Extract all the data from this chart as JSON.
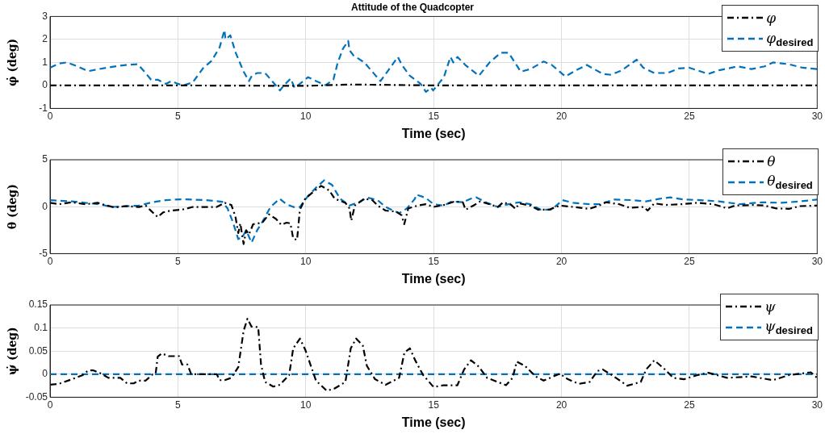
{
  "chart_data": [
    {
      "type": "line",
      "title": "Attitude of the Quadcopter",
      "xlabel": "Time (sec)",
      "ylabel": "φ̇ (deg)",
      "xlim": [
        0,
        30
      ],
      "xticks": [
        0,
        5,
        10,
        15,
        20,
        25,
        30
      ],
      "ylim": [
        -1,
        3
      ],
      "yticks": [
        -1,
        0,
        1,
        2,
        3
      ],
      "grid": true,
      "legend": "top right",
      "series": [
        {
          "name": "φ",
          "color": "#000000",
          "line_style": "dashdot",
          "x": [
            0,
            5,
            10,
            11.8,
            13.5,
            15,
            30
          ],
          "values": [
            0,
            0,
            -0.02,
            0.04,
            0.02,
            0,
            0
          ]
        },
        {
          "name": "φ$_{desired}$",
          "color": "#0072bd",
          "line_style": "dashed",
          "x": [
            0,
            0.34,
            0.65,
            1.07,
            1.49,
            1.9,
            2.43,
            2.96,
            3.43,
            3.69,
            3.95,
            4.21,
            4.53,
            4.74,
            5.0,
            5.21,
            5.58,
            6.0,
            6.31,
            6.63,
            6.82,
            6.86,
            7.05,
            7.26,
            7.57,
            7.78,
            7.89,
            8.1,
            8.41,
            8.73,
            8.99,
            9.15,
            9.41,
            9.56,
            9.77,
            10.09,
            10.4,
            10.77,
            11.08,
            11.24,
            11.45,
            11.66,
            11.71,
            11.87,
            12.29,
            12.6,
            12.92,
            13.23,
            13.6,
            13.76,
            14.07,
            14.49,
            14.7,
            14.9,
            14.98,
            15.4,
            15.66,
            15.77,
            15.93,
            16.24,
            16.77,
            17.19,
            17.62,
            17.93,
            18.41,
            18.78,
            19.3,
            19.62,
            20.15,
            20.57,
            20.99,
            21.62,
            21.94,
            22.36,
            22.94,
            23.2,
            23.63,
            24.16,
            24.58,
            25.0,
            25.74,
            26.16,
            26.9,
            27.43,
            27.95,
            28.27,
            28.9,
            29.43,
            30
          ],
          "values": [
            0.77,
            0.95,
            1.0,
            0.83,
            0.62,
            0.71,
            0.81,
            0.89,
            0.92,
            0.6,
            0.25,
            0.25,
            0.07,
            0.19,
            0.07,
            0,
            0.13,
            0.77,
            1.06,
            1.65,
            2.41,
            2.0,
            2.18,
            1.42,
            0.6,
            0.19,
            0.42,
            0.54,
            0.54,
            0.13,
            -0.22,
            0.01,
            0.3,
            -0.1,
            0.07,
            0.36,
            0.19,
            0.01,
            0.25,
            0.95,
            1.59,
            1.94,
            1.53,
            1.3,
            1.0,
            0.6,
            0.19,
            0.66,
            1.24,
            0.89,
            0.42,
            0.07,
            -0.28,
            -0.1,
            -0.22,
            0.36,
            1.24,
            1.0,
            1.24,
            0.89,
            0.42,
            1.0,
            1.42,
            1.42,
            0.6,
            0.71,
            1.04,
            0.89,
            0.39,
            0.66,
            0.89,
            0.5,
            0.46,
            0.66,
            1.12,
            0.77,
            0.54,
            0.54,
            0.74,
            0.77,
            0.5,
            0.66,
            0.83,
            0.71,
            0.83,
            1.0,
            0.92,
            0.77,
            0.71
          ]
        }
      ]
    },
    {
      "type": "line",
      "xlabel": "Time (sec)",
      "ylabel": "θ (deg)",
      "xlim": [
        0,
        30
      ],
      "xticks": [
        0,
        5,
        10,
        15,
        20,
        25,
        30
      ],
      "ylim": [
        -5,
        5
      ],
      "yticks": [
        -5,
        0,
        5
      ],
      "grid": true,
      "legend": "top right",
      "series": [
        {
          "name": "θ",
          "color": "#000000",
          "line_style": "dashdot",
          "x": [
            0,
            0.34,
            0.86,
            1.38,
            1.86,
            2.22,
            2.54,
            2.96,
            3.48,
            3.74,
            3.9,
            4.21,
            4.42,
            4.74,
            5.16,
            5.58,
            6.1,
            6.52,
            6.83,
            7.09,
            7.25,
            7.36,
            7.44,
            7.57,
            7.67,
            7.78,
            7.94,
            8.3,
            8.56,
            8.83,
            9.04,
            9.25,
            9.4,
            9.51,
            9.66,
            9.77,
            9.98,
            10.29,
            10.6,
            10.92,
            11.13,
            11.55,
            11.71,
            11.78,
            11.92,
            12.29,
            12.6,
            12.81,
            13.12,
            13.54,
            13.75,
            13.85,
            14.01,
            14.38,
            14.69,
            15,
            15.4,
            15.82,
            16.14,
            16.25,
            16.56,
            16.82,
            17.19,
            17.51,
            17.72,
            18.04,
            18.2,
            18.35,
            18.78,
            19.09,
            19.51,
            19.94,
            20.46,
            21.1,
            21.52,
            21.73,
            22.26,
            22.68,
            23.21,
            23.37,
            23.63,
            24.05,
            24.68,
            25.32,
            25.95,
            26.48,
            26.79,
            27.53,
            27.95,
            28.38,
            28.9,
            29.32,
            30
          ],
          "values": [
            0.41,
            0.26,
            0.47,
            0.26,
            0.41,
            0.12,
            -0.09,
            0.06,
            -0.03,
            0.12,
            -0.32,
            -1.11,
            -0.61,
            -0.41,
            -0.32,
            -0.03,
            -0.03,
            -0.03,
            0.41,
            0.18,
            -1.05,
            -2.81,
            -1.78,
            -3.98,
            -2.51,
            -2.95,
            -1.87,
            -1.7,
            -0.82,
            -1.29,
            -1.93,
            -1.7,
            -1.78,
            -3.4,
            -3.54,
            -0.32,
            0.85,
            1.58,
            2.22,
            1.73,
            0.85,
            0.41,
            -0.18,
            -1.49,
            0.12,
            0.85,
            0.7,
            0.12,
            -0.41,
            -0.53,
            -0.91,
            -1.87,
            -0.18,
            0.12,
            0.26,
            -0.03,
            0.18,
            0.56,
            0.47,
            -0.32,
            0.12,
            0.56,
            0.26,
            -0.03,
            0.47,
            0.18,
            -0.23,
            0.35,
            0.12,
            -0.32,
            -0.32,
            0.12,
            -0.03,
            -0.23,
            0.18,
            0.47,
            0.26,
            -0.12,
            -0.03,
            -0.41,
            0.35,
            0.18,
            0.26,
            0.41,
            0.26,
            -0.18,
            0.12,
            0.18,
            0.12,
            -0.18,
            -0.23,
            0.06,
            0.12
          ]
        },
        {
          "name": "θ$_{desired}$",
          "color": "#0072bd",
          "line_style": "dashed",
          "x": [
            0,
            0.86,
            1.91,
            2.43,
            3.48,
            4.0,
            4.53,
            5.16,
            6.1,
            6.73,
            6.94,
            7.15,
            7.36,
            7.52,
            7.67,
            7.88,
            8.1,
            8.3,
            8.62,
            8.98,
            9.25,
            9.51,
            9.77,
            10.09,
            10.4,
            10.72,
            11.03,
            11.34,
            11.71,
            12.08,
            12.4,
            12.81,
            13.12,
            13.65,
            13.96,
            14.27,
            14.32,
            14.69,
            15,
            15.4,
            15.72,
            16.14,
            16.46,
            16.67,
            17.09,
            17.51,
            17.93,
            18.35,
            18.78,
            19.2,
            19.62,
            20.04,
            20.46,
            21.1,
            21.52,
            22.05,
            22.78,
            23.31,
            23.84,
            24.26,
            24.79,
            25.42,
            26.16,
            27.0,
            27.84,
            28.59,
            29.32,
            30
          ],
          "values": [
            0.7,
            0.56,
            0.26,
            -0.03,
            0.12,
            0.47,
            0.7,
            0.79,
            0.7,
            0.53,
            -0.18,
            -1.64,
            -3.45,
            -3.25,
            -2.51,
            -3.83,
            -2.51,
            -1.64,
            -0.03,
            0.85,
            0.26,
            -0.03,
            -0.03,
            1.14,
            2.02,
            2.81,
            2.31,
            0.85,
            0.12,
            0.47,
            0.99,
            0.7,
            -0.03,
            -0.7,
            -0.18,
            0.85,
            1.29,
            0.94,
            0.26,
            0.12,
            0.56,
            0.47,
            0.85,
            0.99,
            0.41,
            -0.03,
            0.26,
            0.47,
            0.26,
            -0.32,
            -0.32,
            0.7,
            0.41,
            0.26,
            0.26,
            0.76,
            0.7,
            0.56,
            0.85,
            0.99,
            0.76,
            0.7,
            0.56,
            0.26,
            0.47,
            0.41,
            0.56,
            0.76
          ]
        }
      ]
    },
    {
      "type": "line",
      "xlabel": "Time (sec)",
      "ylabel": "ψ̇ (deg)",
      "xlim": [
        0,
        30
      ],
      "xticks": [
        0,
        5,
        10,
        15,
        20,
        25,
        30
      ],
      "ylim": [
        -0.05,
        0.15
      ],
      "yticks": [
        -0.05,
        0,
        0.05,
        0.1,
        0.15
      ],
      "grid": true,
      "legend": "top right",
      "series": [
        {
          "name": "ψ",
          "color": "#000000",
          "line_style": "dashdot",
          "x": [
            0,
            0.34,
            0.86,
            1.28,
            1.49,
            1.7,
            2.01,
            2.28,
            2.75,
            3.01,
            3.27,
            3.48,
            3.74,
            4.0,
            4.13,
            4.21,
            4.37,
            4.63,
            5.05,
            5.16,
            5.37,
            5.52,
            6.52,
            6.63,
            6.83,
            7.09,
            7.36,
            7.57,
            7.72,
            7.88,
            8.14,
            8.25,
            8.41,
            8.73,
            8.99,
            9.35,
            9.51,
            9.77,
            9.98,
            10.4,
            10.82,
            11.13,
            11.55,
            11.76,
            11.97,
            12.23,
            12.39,
            12.71,
            13.12,
            13.65,
            13.86,
            14.07,
            14.28,
            14.59,
            15,
            15.4,
            15.93,
            16.19,
            16.46,
            16.77,
            17.09,
            17.51,
            17.83,
            18.09,
            18.25,
            18.57,
            18.99,
            19.3,
            19.94,
            20.25,
            20.68,
            21.1,
            21.41,
            21.62,
            22.05,
            22.57,
            23.1,
            23.31,
            23.63,
            24.05,
            24.37,
            24.79,
            25.32,
            25.74,
            26.48,
            27.43,
            28.27,
            28.9,
            29.75,
            30
          ],
          "values": [
            -0.023,
            -0.021,
            -0.011,
            -0.002,
            0.008,
            0.008,
            0.001,
            -0.008,
            -0.008,
            -0.02,
            -0.02,
            -0.014,
            -0.014,
            -0.001,
            0.001,
            0.038,
            0.045,
            0.039,
            0.039,
            0.021,
            0.021,
            0,
            0,
            -0.013,
            -0.013,
            -0.008,
            0.015,
            0.094,
            0.12,
            0.103,
            0.102,
            0.021,
            -0.017,
            -0.027,
            -0.023,
            -0.002,
            0.056,
            0.077,
            0.053,
            -0.014,
            -0.036,
            -0.031,
            -0.017,
            0.056,
            0.077,
            0.062,
            0.018,
            -0.011,
            -0.023,
            -0.008,
            0.047,
            0.056,
            0.03,
            -0.002,
            -0.028,
            -0.024,
            -0.024,
            0.01,
            0.03,
            0.016,
            -0.008,
            -0.017,
            -0.024,
            -0.008,
            0.027,
            0.018,
            -0.005,
            -0.014,
            0.001,
            -0.011,
            -0.021,
            -0.017,
            0.007,
            0.01,
            -0.005,
            -0.025,
            -0.017,
            0.01,
            0.03,
            0.01,
            -0.008,
            -0.011,
            -0.002,
            0.003,
            -0.008,
            -0.005,
            -0.013,
            -0.002,
            0.004,
            -0.008
          ]
        },
        {
          "name": "ψ$_{desired}$",
          "color": "#0072bd",
          "line_style": "dashed",
          "x": [
            0,
            30
          ],
          "values": [
            0,
            0
          ]
        }
      ]
    }
  ]
}
